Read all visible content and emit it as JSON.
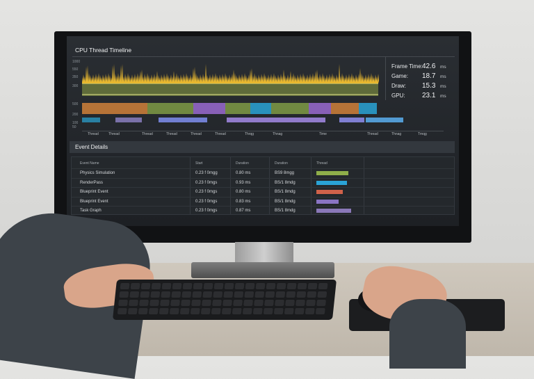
{
  "panel_title": "CPU Thread Timeline",
  "y_axis_labels": [
    "1000",
    "550",
    "350",
    "300"
  ],
  "lane_labels": [
    "500",
    "200",
    "100",
    "50"
  ],
  "x_tick_labels": [
    "Thread",
    "Thread",
    "Thread",
    "Thread",
    "Thread",
    "Thread",
    "Thrqg",
    "Thnag",
    "Time",
    "Thread",
    "Thnag",
    "Tmqg"
  ],
  "stats": [
    {
      "label": "Frame Time:",
      "value": "42.6",
      "unit": "ms"
    },
    {
      "label": "Game:",
      "value": "18.7",
      "unit": "ms"
    },
    {
      "label": "Draw:",
      "value": "15.3",
      "unit": "ms"
    },
    {
      "label": "GPU:",
      "value": "23.1",
      "unit": "ms"
    }
  ],
  "event_details": {
    "title": "Event Details",
    "columns": [
      "Event Name",
      "Start",
      "Duration",
      "Duration",
      "Thread"
    ],
    "rows": [
      {
        "name": "Physics Simulation",
        "start": "0.23 f 0mgg",
        "duration": "0.80 ms",
        "duration2": "BS9 8mgg",
        "color": "#8fae4a"
      },
      {
        "name": "RenderPass",
        "start": "0.23 f 0mgs",
        "duration": "0.93 ms",
        "duration2": "BS/1 8mdg",
        "color": "#2aa3d6"
      },
      {
        "name": "Blueprint Event",
        "start": "0.23 f 0mgs",
        "duration": "0.80 ms",
        "duration2": "BS/1 8mdg",
        "color": "#d0624a"
      },
      {
        "name": "Blueprint Event",
        "start": "0.23 f 0mgs",
        "duration": "0.83 ms",
        "duration2": "BS/1 8mdg",
        "color": "#8a74c4"
      },
      {
        "name": "Task Graph",
        "start": "0.23 f 0mgs",
        "duration": "0.87 ms",
        "duration2": "BS/1 8mdg",
        "color": "#8a78b8"
      }
    ]
  },
  "colors": {
    "spikes": "#e8b830",
    "lane_green": "#7f9a45",
    "lane_blue": "#2aa3d6",
    "lane_purple": "#9a6ad0",
    "lane_orange": "#d0803a"
  }
}
